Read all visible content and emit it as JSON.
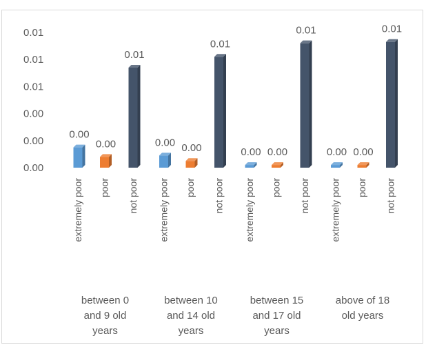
{
  "chart_data": {
    "type": "bar",
    "style": "3d-column",
    "gridlines": false,
    "legend": "none",
    "categories": [
      {
        "group": "between 0 and 9 old years",
        "group_lines": [
          "between 0",
          "and 9 old",
          "years"
        ],
        "bars": [
          {
            "label": "extremely poor",
            "value": 0.0015,
            "data_label": "0.00",
            "color": "#5b9bd5"
          },
          {
            "label": "poor",
            "value": 0.0008,
            "data_label": "0.00",
            "color": "#ed7d31"
          },
          {
            "label": "not poor",
            "value": 0.0074,
            "data_label": "0.01",
            "color": "#44546a"
          }
        ]
      },
      {
        "group": "between 10 and 14 old years",
        "group_lines": [
          "between 10",
          "and 14 old",
          "years"
        ],
        "bars": [
          {
            "label": "extremely poor",
            "value": 0.0009,
            "data_label": "0.00",
            "color": "#5b9bd5"
          },
          {
            "label": "poor",
            "value": 0.0005,
            "data_label": "0.00",
            "color": "#ed7d31"
          },
          {
            "label": "not poor",
            "value": 0.0082,
            "data_label": "0.01",
            "color": "#44546a"
          }
        ]
      },
      {
        "group": "between 15 and 17 old years",
        "group_lines": [
          "between 15",
          "and 17 old",
          "years"
        ],
        "bars": [
          {
            "label": "extremely poor",
            "value": 0.0002,
            "data_label": "0.00",
            "color": "#5b9bd5"
          },
          {
            "label": "poor",
            "value": 0.0002,
            "data_label": "0.00",
            "color": "#ed7d31"
          },
          {
            "label": "not poor",
            "value": 0.0092,
            "data_label": "0.01",
            "color": "#44546a"
          }
        ]
      },
      {
        "group": "above of 18 old years",
        "group_lines": [
          "above of 18",
          "old years"
        ],
        "bars": [
          {
            "label": "extremely poor",
            "value": 0.0002,
            "data_label": "0.00",
            "color": "#5b9bd5"
          },
          {
            "label": "poor",
            "value": 0.0002,
            "data_label": "0.00",
            "color": "#ed7d31"
          },
          {
            "label": "not poor",
            "value": 0.0093,
            "data_label": "0.01",
            "color": "#44546a"
          }
        ]
      }
    ],
    "y_ticks": [
      "0.00",
      "0.00",
      "0.00",
      "0.01",
      "0.01",
      "0.01"
    ],
    "ylim": [
      0,
      0.01
    ]
  }
}
